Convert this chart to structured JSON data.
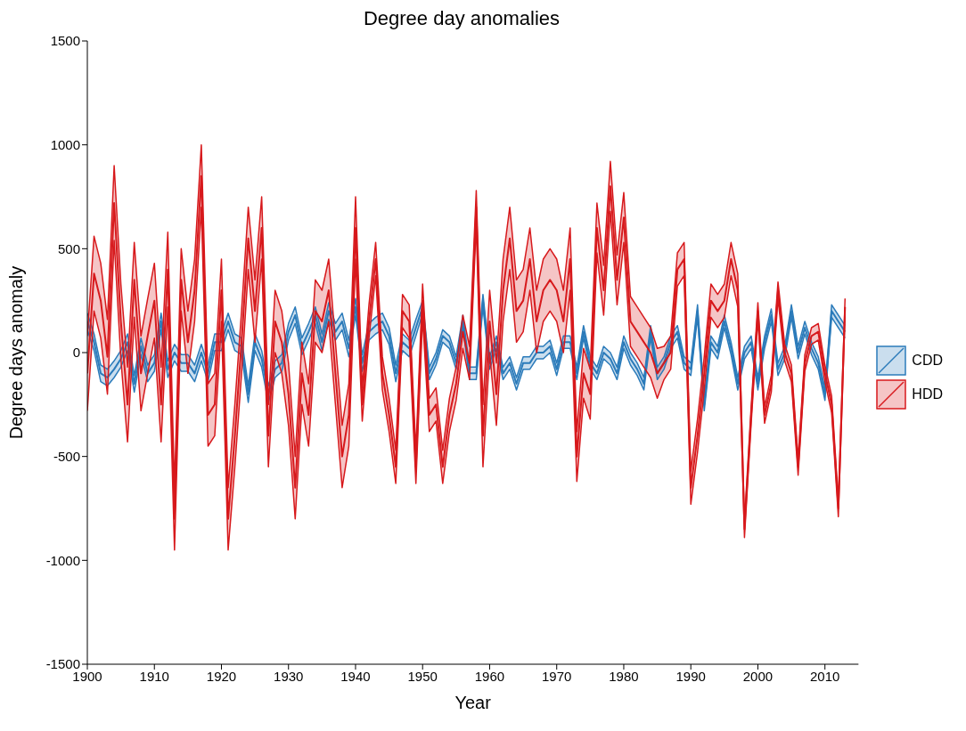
{
  "chart_data": {
    "type": "line",
    "title": "Degree day anomalies",
    "xlabel": "Year",
    "ylabel": "Degree days anomaly",
    "x": [
      1900,
      1901,
      1902,
      1903,
      1904,
      1905,
      1906,
      1907,
      1908,
      1909,
      1910,
      1911,
      1912,
      1913,
      1914,
      1915,
      1916,
      1917,
      1918,
      1919,
      1920,
      1921,
      1922,
      1923,
      1924,
      1925,
      1926,
      1927,
      1928,
      1929,
      1930,
      1931,
      1932,
      1933,
      1934,
      1935,
      1936,
      1937,
      1938,
      1939,
      1940,
      1941,
      1942,
      1943,
      1944,
      1945,
      1946,
      1947,
      1948,
      1949,
      1950,
      1951,
      1952,
      1953,
      1954,
      1955,
      1956,
      1957,
      1958,
      1959,
      1960,
      1961,
      1962,
      1963,
      1964,
      1965,
      1966,
      1967,
      1968,
      1969,
      1970,
      1971,
      1972,
      1973,
      1974,
      1975,
      1976,
      1977,
      1978,
      1979,
      1980,
      1981,
      1982,
      1983,
      1984,
      1985,
      1986,
      1987,
      1988,
      1989,
      1990,
      1991,
      1992,
      1993,
      1994,
      1995,
      1996,
      1997,
      1998,
      1999,
      2000,
      2001,
      2002,
      2003,
      2004,
      2005,
      2006,
      2007,
      2008,
      2009,
      2010,
      2011,
      2012,
      2013
    ],
    "series": [
      {
        "name": "CDD",
        "color": "#2b7bba",
        "values": [
          150,
          50,
          -100,
          -120,
          -80,
          -30,
          50,
          -150,
          30,
          -100,
          -50,
          150,
          -80,
          0,
          -50,
          -50,
          -100,
          0,
          -100,
          50,
          50,
          150,
          50,
          30,
          -200,
          50,
          -30,
          -200,
          -80,
          -50,
          100,
          180,
          30,
          100,
          180,
          50,
          200,
          100,
          150,
          20,
          220,
          -50,
          100,
          130,
          150,
          80,
          -100,
          50,
          20,
          120,
          220,
          -100,
          -30,
          80,
          50,
          -50,
          150,
          -100,
          -100,
          250,
          -50,
          50,
          -100,
          -50,
          -150,
          -50,
          -50,
          0,
          0,
          30,
          -80,
          50,
          50,
          -100,
          100,
          -50,
          -100,
          0,
          -30,
          -100,
          50,
          -30,
          -80,
          -150,
          100,
          -100,
          -50,
          50,
          100,
          -50,
          -80,
          200,
          -250,
          50,
          0,
          150,
          20,
          -150,
          0,
          50,
          -150,
          50,
          180,
          -80,
          0,
          200,
          0,
          120,
          20,
          -50,
          -200,
          200,
          150,
          100
        ],
        "lower": [
          110,
          10,
          -140,
          -160,
          -120,
          -70,
          10,
          -190,
          -10,
          -140,
          -90,
          110,
          -120,
          -40,
          -90,
          -90,
          -140,
          -40,
          -140,
          10,
          10,
          110,
          10,
          -10,
          -240,
          10,
          -70,
          -240,
          -120,
          -90,
          60,
          140,
          -10,
          60,
          140,
          10,
          160,
          60,
          110,
          -20,
          180,
          -90,
          60,
          90,
          110,
          40,
          -140,
          10,
          -20,
          80,
          190,
          -130,
          -60,
          50,
          20,
          -80,
          120,
          -130,
          -130,
          220,
          -80,
          20,
          -130,
          -80,
          -180,
          -80,
          -80,
          -30,
          -30,
          0,
          -110,
          20,
          20,
          -130,
          70,
          -80,
          -130,
          -30,
          -60,
          -130,
          20,
          -60,
          -110,
          -180,
          70,
          -130,
          -80,
          20,
          70,
          -80,
          -110,
          170,
          -280,
          20,
          -30,
          120,
          -10,
          -180,
          -30,
          20,
          -180,
          20,
          150,
          -110,
          -30,
          170,
          -30,
          90,
          -10,
          -80,
          -230,
          170,
          120,
          70
        ],
        "upper": [
          190,
          90,
          -60,
          -80,
          -40,
          10,
          90,
          -110,
          70,
          -60,
          -10,
          190,
          -40,
          40,
          -10,
          -10,
          -60,
          40,
          -60,
          90,
          90,
          190,
          90,
          70,
          -160,
          90,
          10,
          -160,
          -40,
          -10,
          140,
          220,
          70,
          140,
          220,
          90,
          240,
          140,
          190,
          60,
          260,
          -10,
          140,
          170,
          190,
          120,
          -60,
          90,
          60,
          160,
          250,
          -70,
          0,
          110,
          80,
          -20,
          180,
          -70,
          -70,
          280,
          -20,
          80,
          -70,
          -20,
          -120,
          -20,
          -20,
          30,
          30,
          60,
          -50,
          80,
          80,
          -70,
          130,
          -20,
          -70,
          30,
          0,
          -70,
          80,
          0,
          -50,
          -120,
          130,
          -70,
          -20,
          80,
          130,
          -20,
          -50,
          230,
          -220,
          80,
          30,
          180,
          50,
          -120,
          30,
          80,
          -120,
          80,
          210,
          -50,
          30,
          230,
          30,
          150,
          50,
          -20,
          -170,
          230,
          180,
          130
        ]
      },
      {
        "type": "line",
        "color": "#2b7bba",
        "values": [
          110,
          10,
          -140,
          -160,
          -120,
          -70,
          10,
          -190,
          -10,
          -140,
          -90,
          110,
          -120,
          -40,
          -90,
          -90,
          -140,
          -40,
          -140,
          10,
          10,
          110,
          10,
          -10,
          -240,
          10,
          -70,
          -240,
          -120,
          -90,
          60,
          140,
          -10,
          60,
          140,
          10,
          160,
          60,
          110,
          -20,
          180,
          -90,
          60,
          90,
          110,
          40,
          -140,
          10,
          -20,
          80,
          190,
          -130,
          -60,
          50,
          20,
          -80,
          120,
          -130,
          -130,
          220,
          -80,
          20,
          -130,
          -80,
          -180,
          -80,
          -80,
          -30,
          -30,
          0,
          -110,
          20,
          20,
          -130,
          70,
          -80,
          -130,
          -30,
          -60,
          -130,
          20,
          -60,
          -110,
          -180,
          70,
          -130,
          -80,
          20,
          70,
          -80,
          -110,
          170,
          -280,
          20,
          -30,
          120,
          -10,
          -180,
          -30,
          20,
          -180,
          20,
          150,
          -110,
          -30,
          170,
          -30,
          90,
          -10,
          -80,
          -230,
          170,
          120,
          70
        ]
      },
      {
        "type": "line",
        "color": "#2b7bba",
        "values": [
          190,
          90,
          -60,
          -80,
          -40,
          10,
          90,
          -110,
          70,
          -60,
          -10,
          190,
          -40,
          40,
          -10,
          -10,
          -60,
          40,
          -60,
          90,
          90,
          190,
          90,
          70,
          -160,
          90,
          10,
          -160,
          -40,
          -10,
          140,
          220,
          70,
          140,
          220,
          90,
          240,
          140,
          190,
          60,
          260,
          -10,
          140,
          170,
          190,
          120,
          -60,
          90,
          60,
          160,
          250,
          -70,
          0,
          110,
          80,
          -20,
          180,
          -70,
          -70,
          280,
          -20,
          80,
          -70,
          -20,
          -120,
          -20,
          -20,
          30,
          30,
          60,
          -50,
          80,
          80,
          -70,
          130,
          -20,
          -70,
          30,
          0,
          -70,
          80,
          0,
          -50,
          -120,
          130,
          -70,
          -20,
          80,
          130,
          -20,
          -50,
          230,
          -220,
          80,
          30,
          180,
          50,
          -120,
          30,
          80,
          -120,
          80,
          210,
          -50,
          30,
          230,
          30,
          150,
          50,
          -20,
          -170,
          230,
          180,
          130
        ]
      },
      {
        "name": "HDD",
        "color": "#d7191c",
        "values": [
          -100,
          380,
          250,
          -20,
          720,
          150,
          -250,
          350,
          -100,
          80,
          250,
          -250,
          400,
          -800,
          350,
          50,
          300,
          850,
          -300,
          -250,
          300,
          -800,
          -400,
          50,
          550,
          200,
          600,
          -400,
          150,
          50,
          -200,
          -650,
          -100,
          -300,
          200,
          150,
          300,
          -100,
          -500,
          -300,
          600,
          -250,
          150,
          450,
          -100,
          -300,
          -550,
          200,
          150,
          -550,
          250,
          -300,
          -250,
          -550,
          -300,
          -150,
          100,
          -50,
          700,
          -400,
          150,
          -200,
          300,
          550,
          200,
          250,
          450,
          150,
          300,
          350,
          300,
          150,
          450,
          -500,
          -100,
          -200,
          600,
          300,
          800,
          350,
          650,
          150,
          100,
          50,
          0,
          -100,
          -50,
          0,
          400,
          450,
          -650,
          -400,
          -100,
          250,
          200,
          250,
          450,
          300,
          -850,
          -300,
          200,
          -300,
          -150,
          300,
          0,
          -100,
          -550,
          -50,
          80,
          100,
          -100,
          -250,
          -750,
          220
        ],
        "lower": [
          -280,
          200,
          70,
          -200,
          540,
          -30,
          -430,
          170,
          -280,
          -100,
          70,
          -430,
          220,
          -950,
          200,
          -100,
          150,
          700,
          -450,
          -400,
          150,
          -950,
          -550,
          -100,
          400,
          50,
          450,
          -550,
          0,
          -100,
          -350,
          -800,
          -250,
          -450,
          50,
          0,
          150,
          -250,
          -650,
          -450,
          450,
          -330,
          70,
          370,
          -180,
          -380,
          -630,
          120,
          70,
          -630,
          170,
          -380,
          -330,
          -630,
          -380,
          -230,
          20,
          -130,
          620,
          -550,
          0,
          -350,
          150,
          400,
          50,
          100,
          300,
          0,
          150,
          200,
          150,
          0,
          300,
          -620,
          -220,
          -320,
          480,
          180,
          680,
          230,
          530,
          30,
          -20,
          -70,
          -120,
          -220,
          -130,
          -80,
          320,
          370,
          -730,
          -480,
          -180,
          170,
          120,
          170,
          370,
          220,
          -890,
          -340,
          160,
          -340,
          -190,
          260,
          -40,
          -140,
          -590,
          -90,
          40,
          60,
          -140,
          -290,
          -790,
          180
        ],
        "upper": [
          80,
          560,
          430,
          160,
          900,
          330,
          -70,
          530,
          80,
          260,
          430,
          -70,
          580,
          -650,
          500,
          200,
          450,
          1000,
          -150,
          -100,
          450,
          -650,
          -250,
          200,
          700,
          350,
          750,
          -250,
          300,
          200,
          -50,
          -500,
          50,
          -150,
          350,
          300,
          450,
          50,
          -350,
          -150,
          750,
          -170,
          230,
          530,
          -20,
          -220,
          -470,
          280,
          230,
          -470,
          330,
          -220,
          -170,
          -470,
          -220,
          -70,
          180,
          30,
          780,
          -250,
          300,
          -50,
          450,
          700,
          350,
          400,
          600,
          300,
          450,
          500,
          450,
          300,
          600,
          -380,
          20,
          -80,
          720,
          420,
          920,
          470,
          770,
          270,
          220,
          170,
          120,
          20,
          30,
          80,
          480,
          530,
          -570,
          -320,
          -20,
          330,
          280,
          330,
          530,
          380,
          -810,
          -260,
          240,
          -260,
          -110,
          340,
          40,
          -60,
          -510,
          -10,
          120,
          140,
          -60,
          -210,
          -710,
          260
        ]
      },
      {
        "type": "line",
        "color": "#d7191c",
        "values": [
          -280,
          200,
          70,
          -200,
          540,
          -30,
          -430,
          170,
          -280,
          -100,
          70,
          -430,
          220,
          -950,
          200,
          -100,
          150,
          700,
          -450,
          -400,
          150,
          -950,
          -550,
          -100,
          400,
          50,
          450,
          -550,
          0,
          -100,
          -350,
          -800,
          -250,
          -450,
          50,
          0,
          150,
          -250,
          -650,
          -450,
          450,
          -330,
          70,
          370,
          -180,
          -380,
          -630,
          120,
          70,
          -630,
          170,
          -380,
          -330,
          -630,
          -380,
          -230,
          20,
          -130,
          620,
          -550,
          0,
          -350,
          150,
          400,
          50,
          100,
          300,
          0,
          150,
          200,
          150,
          0,
          300,
          -620,
          -220,
          -320,
          480,
          180,
          680,
          230,
          530,
          30,
          -20,
          -70,
          -120,
          -220,
          -130,
          -80,
          320,
          370,
          -730,
          -480,
          -180,
          170,
          120,
          170,
          370,
          220,
          -890,
          -340,
          160,
          -340,
          -190,
          260,
          -40,
          -140,
          -590,
          -90,
          40,
          60,
          -140,
          -290,
          -790,
          180
        ]
      },
      {
        "type": "line",
        "color": "#d7191c",
        "values": [
          80,
          560,
          430,
          160,
          900,
          330,
          -70,
          530,
          80,
          260,
          430,
          -70,
          580,
          -650,
          500,
          200,
          450,
          1000,
          -150,
          -100,
          450,
          -650,
          -250,
          200,
          700,
          350,
          750,
          -250,
          300,
          200,
          -50,
          -500,
          50,
          -150,
          350,
          300,
          450,
          50,
          -350,
          -150,
          750,
          -170,
          230,
          530,
          -20,
          -220,
          -470,
          280,
          230,
          -470,
          330,
          -220,
          -170,
          -470,
          -220,
          -70,
          180,
          30,
          780,
          -250,
          300,
          -50,
          450,
          700,
          350,
          400,
          600,
          300,
          450,
          500,
          450,
          300,
          600,
          -380,
          20,
          -80,
          720,
          420,
          920,
          470,
          770,
          270,
          220,
          170,
          120,
          20,
          30,
          80,
          480,
          530,
          -570,
          -320,
          -20,
          330,
          280,
          330,
          530,
          380,
          -810,
          -260,
          240,
          -260,
          -110,
          340,
          40,
          -60,
          -510,
          -10,
          120,
          140,
          -60,
          -210,
          -710,
          260
        ]
      }
    ],
    "xlim": [
      1900,
      2015
    ],
    "xticks": [
      1900,
      1910,
      1920,
      1930,
      1940,
      1950,
      1960,
      1970,
      1980,
      1990,
      2000,
      2010
    ],
    "ylim": [
      -1500,
      1500
    ],
    "yticks": [
      -1500,
      -1000,
      -500,
      0,
      500,
      1000,
      1500
    ],
    "grid": false,
    "legend": "right",
    "marker": "none",
    "line_style": "solid"
  }
}
